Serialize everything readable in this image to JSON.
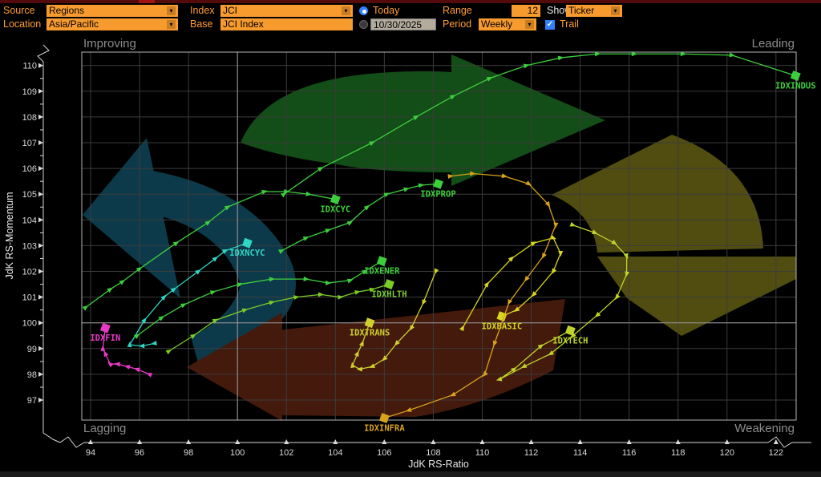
{
  "titlebar": {
    "strip_color": "#540b0b",
    "accent_segment_color": "#a31212"
  },
  "controls": {
    "label_color": "#ff9d33",
    "field_orange": "#f89b2f",
    "arrowbox_orange": "#c87d20",
    "date_field_bg": "#b3ab9b",
    "radio_blue": "#2f82ff",
    "source_label": "Source",
    "source_value": "Regions",
    "location_label": "Location",
    "location_value": "Asia/Pacific",
    "index_label": "Index",
    "index_value": "JCI",
    "base_label": "Base",
    "base_value": "JCI Index",
    "today_label": "Today",
    "date_value": "10/30/2025",
    "range_label": "Range",
    "range_value": "12",
    "period_label": "Period",
    "period_value": "Weekly",
    "show_label": "Show",
    "show_value": "Ticker",
    "trail_label": "Trail"
  },
  "chart_data": {
    "type": "scatter",
    "subtype": "relative-rotation-graph",
    "xlabel": "JdK RS-Ratio",
    "ylabel": "JdK RS-Momentum",
    "xlim": [
      93.6,
      122.9
    ],
    "ylim": [
      96.1,
      110.6
    ],
    "x_ticks": [
      94,
      96,
      98,
      100,
      102,
      104,
      106,
      108,
      110,
      112,
      114,
      116,
      118,
      120,
      122
    ],
    "y_ticks": [
      97,
      98,
      99,
      100,
      101,
      102,
      103,
      104,
      105,
      106,
      107,
      108,
      109,
      110
    ],
    "center": [
      100,
      100
    ],
    "grid": true,
    "quadrant_labels": {
      "top_left": "Improving",
      "top_right": "Leading",
      "bottom_left": "Lagging",
      "bottom_right": "Weakening"
    },
    "quadrant_arrow_colors": {
      "improving": "#0d3a4a",
      "leading": "#134d17",
      "lagging": "#431a0c",
      "weakening": "#514d10"
    },
    "axis_color": "#d9d9d9",
    "grid_color": "#3c3c3c",
    "centerline_color": "#9d9d9d",
    "border_color": "#b5b5b5",
    "quadrant_label_color": "#8c8c8c",
    "series": [
      {
        "ticker": "IDXINDUS",
        "color": "#3ccf3c",
        "points": [
          [
            101.9,
            105.0
          ],
          [
            103.4,
            106.0
          ],
          [
            105.5,
            107.0
          ],
          [
            107.3,
            108.0
          ],
          [
            108.8,
            108.8
          ],
          [
            110.3,
            109.5
          ],
          [
            111.8,
            110.0
          ],
          [
            113.2,
            110.3
          ],
          [
            114.7,
            110.45
          ],
          [
            116.2,
            110.45
          ],
          [
            118.2,
            110.45
          ],
          [
            120.2,
            110.4
          ],
          [
            122.8,
            109.6
          ]
        ]
      },
      {
        "ticker": "IDXCYC",
        "color": "#3ccf3c",
        "points": [
          [
            93.8,
            100.6
          ],
          [
            94.8,
            101.3
          ],
          [
            95.3,
            101.6
          ],
          [
            96.0,
            102.1
          ],
          [
            97.5,
            103.1
          ],
          [
            98.8,
            103.9
          ],
          [
            99.6,
            104.5
          ],
          [
            101.1,
            105.1
          ],
          [
            102.0,
            105.1
          ],
          [
            102.9,
            105.0
          ],
          [
            104.0,
            104.8
          ]
        ]
      },
      {
        "ticker": "IDXPROP",
        "color": "#3ccf3c",
        "points": [
          [
            101.8,
            102.8
          ],
          [
            102.8,
            103.3
          ],
          [
            103.7,
            103.6
          ],
          [
            104.6,
            103.9
          ],
          [
            105.3,
            104.5
          ],
          [
            106.1,
            105.0
          ],
          [
            106.9,
            105.2
          ],
          [
            107.5,
            105.35
          ],
          [
            108.2,
            105.4
          ]
        ]
      },
      {
        "ticker": "IDXNCYC",
        "color": "#2fd6c3",
        "points": [
          [
            96.6,
            99.2
          ],
          [
            96.1,
            99.1
          ],
          [
            95.6,
            99.15
          ],
          [
            96.2,
            100.1
          ],
          [
            97.0,
            101.0
          ],
          [
            97.4,
            101.3
          ],
          [
            98.4,
            102.0
          ],
          [
            99.1,
            102.5
          ],
          [
            99.5,
            102.8
          ],
          [
            100.4,
            103.1
          ]
        ]
      },
      {
        "ticker": "IDXENER",
        "color": "#3ccf3c",
        "points": [
          [
            95.9,
            99.5
          ],
          [
            96.9,
            100.2
          ],
          [
            97.8,
            100.7
          ],
          [
            99.0,
            101.2
          ],
          [
            100.1,
            101.5
          ],
          [
            101.4,
            101.7
          ],
          [
            102.8,
            101.7
          ],
          [
            103.7,
            101.55
          ],
          [
            104.6,
            101.65
          ],
          [
            105.2,
            102.0
          ],
          [
            105.9,
            102.4
          ]
        ]
      },
      {
        "ticker": "IDXHLTH",
        "color": "#7acc28",
        "points": [
          [
            97.2,
            98.9
          ],
          [
            98.2,
            99.5
          ],
          [
            99.1,
            100.1
          ],
          [
            100.3,
            100.5
          ],
          [
            101.4,
            100.8
          ],
          [
            102.4,
            101.0
          ],
          [
            103.4,
            101.1
          ],
          [
            104.2,
            101.0
          ],
          [
            104.9,
            101.2
          ],
          [
            105.5,
            101.3
          ],
          [
            106.2,
            101.5
          ]
        ]
      },
      {
        "ticker": "IDXTRANS",
        "color": "#cfcf2e",
        "points": [
          [
            108.1,
            102.0
          ],
          [
            107.6,
            100.8
          ],
          [
            107.1,
            99.8
          ],
          [
            106.5,
            99.2
          ],
          [
            106.0,
            98.6
          ],
          [
            105.5,
            98.3
          ],
          [
            105.0,
            98.2
          ],
          [
            104.7,
            98.35
          ],
          [
            104.9,
            98.8
          ],
          [
            105.1,
            99.2
          ],
          [
            105.4,
            100.0
          ]
        ]
      },
      {
        "ticker": "IDXBASIC",
        "color": "#d6d61f",
        "points": [
          [
            109.2,
            99.8
          ],
          [
            110.2,
            101.5
          ],
          [
            111.2,
            102.5
          ],
          [
            112.1,
            103.1
          ],
          [
            112.9,
            103.3
          ],
          [
            113.2,
            102.7
          ],
          [
            112.9,
            102.0
          ],
          [
            112.1,
            101.1
          ],
          [
            111.4,
            100.5
          ],
          [
            110.8,
            100.25
          ]
        ]
      },
      {
        "ticker": "IDXTECH",
        "color": "#bfd32a",
        "points": [
          [
            113.7,
            103.8
          ],
          [
            114.6,
            103.5
          ],
          [
            115.4,
            103.1
          ],
          [
            115.9,
            102.6
          ],
          [
            115.9,
            101.9
          ],
          [
            115.5,
            101.0
          ],
          [
            114.7,
            100.3
          ],
          [
            113.7,
            99.5
          ],
          [
            112.8,
            98.8
          ],
          [
            111.7,
            98.3
          ],
          [
            110.7,
            97.8
          ],
          [
            111.3,
            98.2
          ],
          [
            112.4,
            99.1
          ],
          [
            113.6,
            99.7
          ]
        ]
      },
      {
        "ticker": "IDXFIN",
        "color": "#e838c8",
        "points": [
          [
            96.4,
            98.0
          ],
          [
            95.9,
            98.2
          ],
          [
            95.5,
            98.3
          ],
          [
            95.1,
            98.4
          ],
          [
            94.8,
            98.4
          ],
          [
            94.6,
            98.8
          ],
          [
            94.5,
            99.0
          ],
          [
            94.6,
            99.8
          ]
        ]
      },
      {
        "ticker": "IDXINFRA",
        "color": "#d9a21b",
        "points": [
          [
            108.7,
            105.7
          ],
          [
            109.6,
            105.8
          ],
          [
            110.9,
            105.7
          ],
          [
            111.9,
            105.4
          ],
          [
            112.7,
            104.6
          ],
          [
            113.0,
            103.8
          ],
          [
            112.5,
            102.6
          ],
          [
            111.8,
            101.7
          ],
          [
            111.1,
            100.8
          ],
          [
            110.5,
            99.2
          ],
          [
            110.1,
            98.0
          ],
          [
            108.8,
            97.2
          ],
          [
            107.0,
            96.6
          ],
          [
            106.0,
            96.3
          ]
        ]
      }
    ]
  }
}
